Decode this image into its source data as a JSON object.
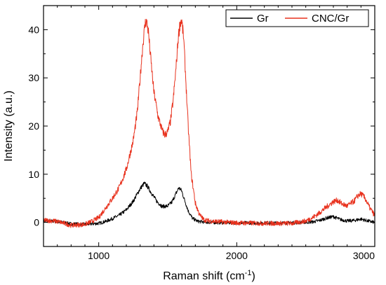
{
  "chart_data": {
    "type": "line",
    "xlabel": "Raman shift (cm",
    "xlabel_sup": "-1",
    "xlabel_close": ")",
    "ylabel": "Intensity (a.u.)",
    "xlim": [
      600,
      3000
    ],
    "ylim": [
      -5,
      45
    ],
    "x_ticks": [
      1000,
      2000,
      3000
    ],
    "y_ticks": [
      0,
      10,
      20,
      30,
      40
    ],
    "legend_placement": "top-right",
    "grid": false,
    "series": [
      {
        "name": "Gr",
        "color": "#000000",
        "points": [
          [
            600,
            0.3
          ],
          [
            700,
            0.2
          ],
          [
            800,
            -0.3
          ],
          [
            900,
            -0.4
          ],
          [
            1000,
            -0.2
          ],
          [
            1050,
            0.2
          ],
          [
            1100,
            0.8
          ],
          [
            1150,
            1.5
          ],
          [
            1200,
            2.6
          ],
          [
            1250,
            4.4
          ],
          [
            1300,
            7.0
          ],
          [
            1330,
            8.1
          ],
          [
            1350,
            7.6
          ],
          [
            1380,
            6.2
          ],
          [
            1420,
            4.4
          ],
          [
            1460,
            3.3
          ],
          [
            1500,
            3.4
          ],
          [
            1530,
            4.2
          ],
          [
            1560,
            6.0
          ],
          [
            1580,
            7.2
          ],
          [
            1600,
            6.6
          ],
          [
            1620,
            4.8
          ],
          [
            1650,
            2.3
          ],
          [
            1680,
            0.8
          ],
          [
            1720,
            0.2
          ],
          [
            1800,
            0.0
          ],
          [
            2000,
            -0.1
          ],
          [
            2200,
            -0.1
          ],
          [
            2400,
            -0.1
          ],
          [
            2550,
            0.1
          ],
          [
            2600,
            0.4
          ],
          [
            2650,
            0.9
          ],
          [
            2700,
            1.2
          ],
          [
            2750,
            0.6
          ],
          [
            2800,
            0.3
          ],
          [
            2850,
            0.4
          ],
          [
            2900,
            0.7
          ],
          [
            2950,
            0.3
          ],
          [
            3000,
            0.0
          ]
        ]
      },
      {
        "name": "CNC/Gr",
        "color": "#e8321e",
        "points": [
          [
            600,
            0.5
          ],
          [
            700,
            0.2
          ],
          [
            800,
            -0.6
          ],
          [
            900,
            -0.4
          ],
          [
            950,
            0.2
          ],
          [
            1000,
            1.0
          ],
          [
            1030,
            2.2
          ],
          [
            1060,
            3.4
          ],
          [
            1100,
            5.0
          ],
          [
            1150,
            7.3
          ],
          [
            1200,
            11.0
          ],
          [
            1250,
            17.0
          ],
          [
            1280,
            23.0
          ],
          [
            1300,
            30.0
          ],
          [
            1320,
            37.0
          ],
          [
            1335,
            41.0
          ],
          [
            1345,
            42.0
          ],
          [
            1360,
            39.5
          ],
          [
            1380,
            33.0
          ],
          [
            1400,
            27.0
          ],
          [
            1430,
            22.0
          ],
          [
            1460,
            19.0
          ],
          [
            1480,
            18.2
          ],
          [
            1500,
            18.8
          ],
          [
            1520,
            21.0
          ],
          [
            1540,
            25.5
          ],
          [
            1560,
            32.0
          ],
          [
            1575,
            38.0
          ],
          [
            1590,
            41.5
          ],
          [
            1600,
            42.0
          ],
          [
            1615,
            38.5
          ],
          [
            1630,
            30.0
          ],
          [
            1650,
            19.0
          ],
          [
            1670,
            10.0
          ],
          [
            1700,
            4.0
          ],
          [
            1730,
            1.6
          ],
          [
            1760,
            0.6
          ],
          [
            1800,
            0.3
          ],
          [
            2000,
            -0.1
          ],
          [
            2200,
            -0.2
          ],
          [
            2400,
            -0.2
          ],
          [
            2500,
            0.3
          ],
          [
            2550,
            1.0
          ],
          [
            2600,
            2.0
          ],
          [
            2650,
            3.2
          ],
          [
            2700,
            4.3
          ],
          [
            2730,
            4.6
          ],
          [
            2760,
            3.9
          ],
          [
            2800,
            3.4
          ],
          [
            2850,
            4.4
          ],
          [
            2880,
            5.6
          ],
          [
            2900,
            6.0
          ],
          [
            2930,
            5.0
          ],
          [
            2960,
            3.2
          ],
          [
            3000,
            1.4
          ]
        ]
      }
    ]
  }
}
